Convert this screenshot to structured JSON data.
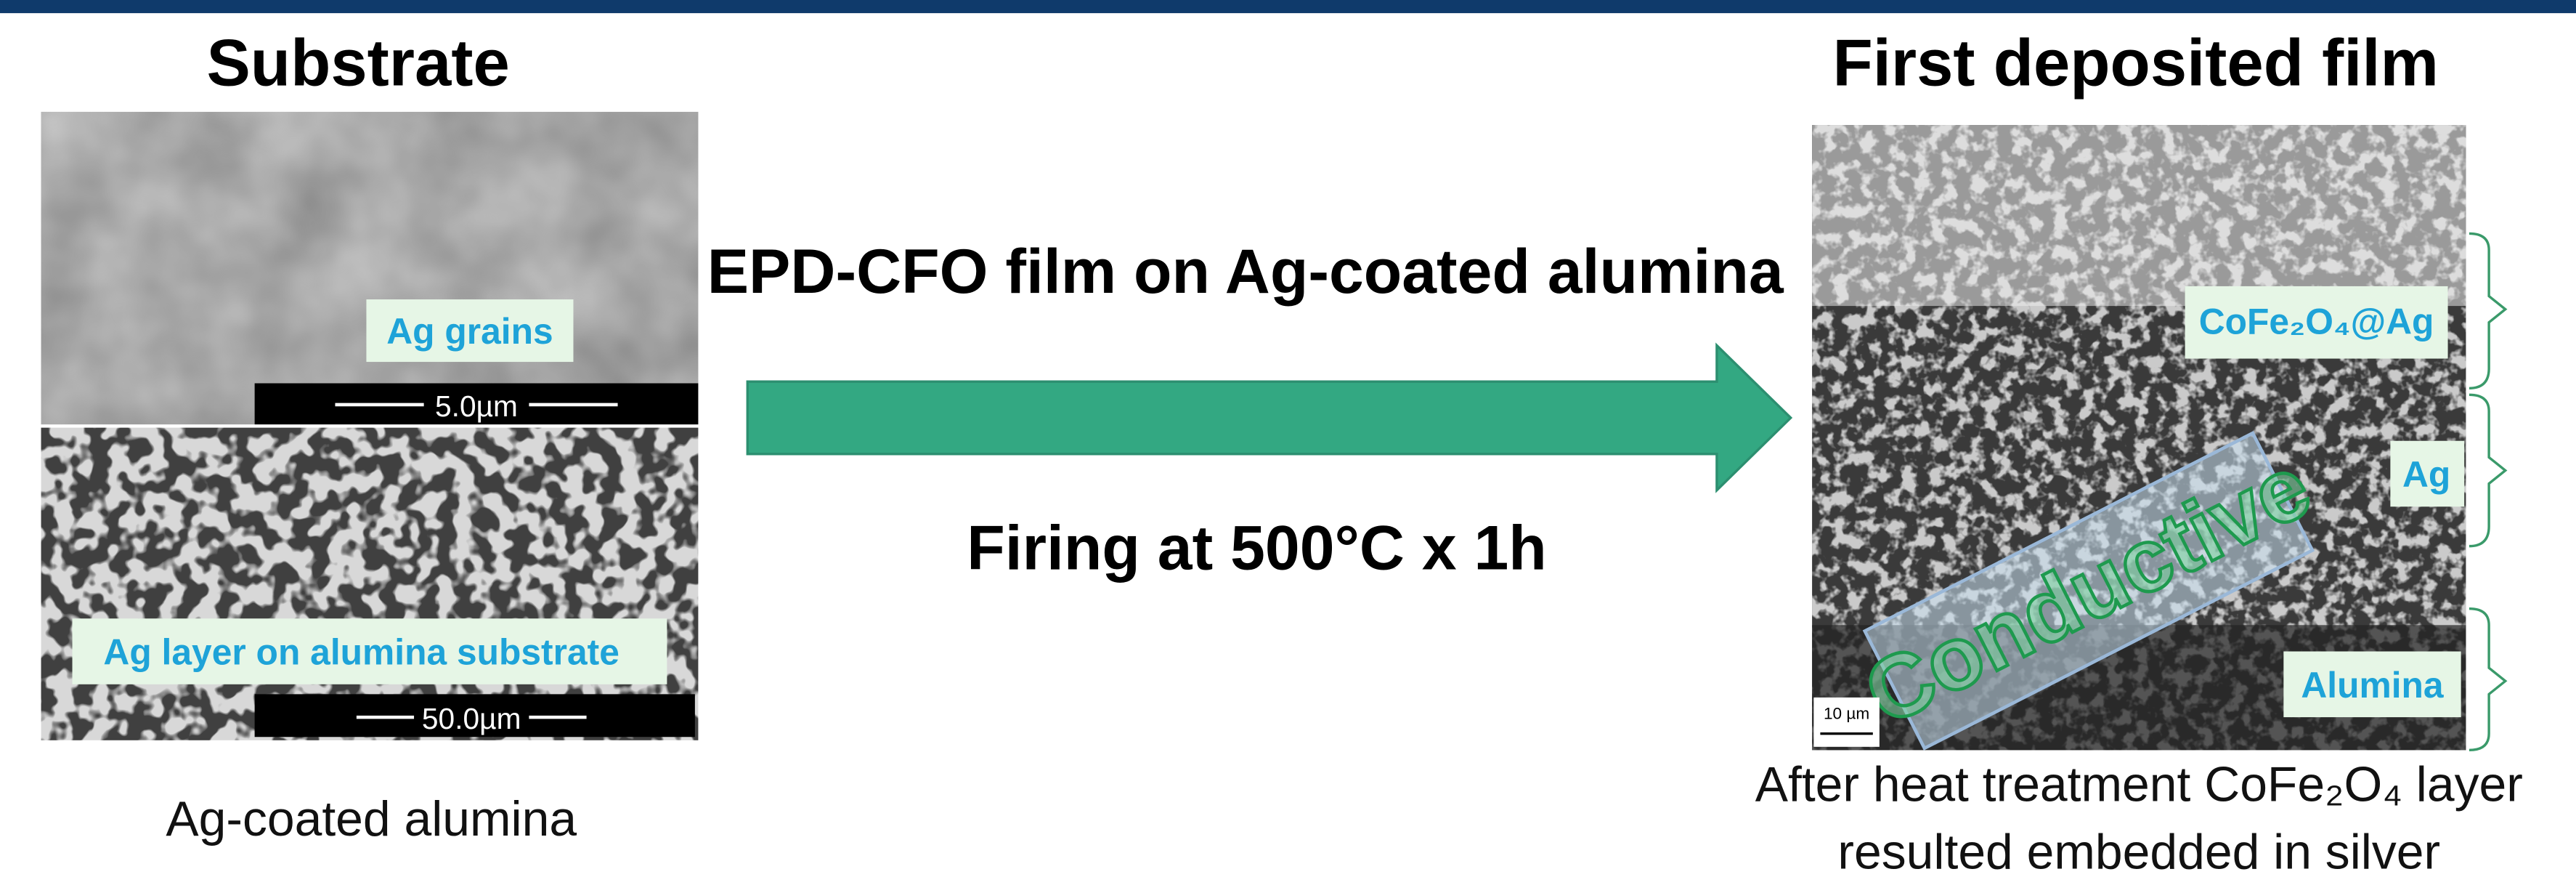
{
  "left": {
    "title": "Substrate",
    "image_top": {
      "label": "Ag grains",
      "scale": "5.0µm"
    },
    "image_bottom": {
      "label": "Ag layer on alumina substrate",
      "scale": "50.0µm"
    },
    "caption": "Ag-coated alumina"
  },
  "middle": {
    "top": "EPD-CFO film on Ag-coated alumina",
    "bottom": "Firing at 500°C x 1h"
  },
  "right": {
    "title": "First deposited film",
    "layers": [
      "CoFe₂O₄@Ag",
      "Ag",
      "Alumina"
    ],
    "stamp": "Conductive",
    "scale": "10 µm",
    "caption": [
      "After heat treatment CoFe₂O₄ layer",
      "resulted embedded in silver"
    ]
  }
}
